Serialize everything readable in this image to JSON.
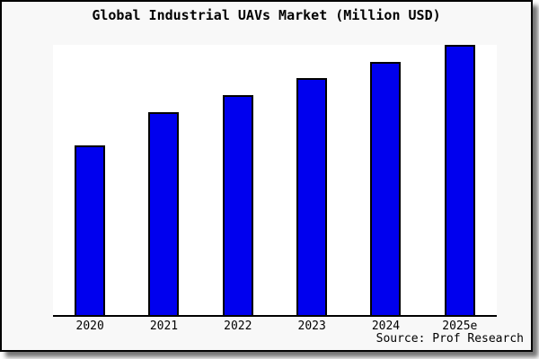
{
  "window": {
    "card_background": "#f8f8f8",
    "plot_background": "#ffffff",
    "frame_border_color": "#000000"
  },
  "chart_data": {
    "type": "bar",
    "title": "Global Industrial UAVs Market (Million USD)",
    "categories": [
      "2020",
      "2021",
      "2022",
      "2023",
      "2024",
      "2025e"
    ],
    "values": [
      62.8,
      75.1,
      81.4,
      87.7,
      93.7,
      100
    ],
    "xlabel": "",
    "ylabel": "",
    "ylim": [
      0,
      100
    ],
    "grid": false,
    "legend_position": "none",
    "bar_color": "#0000ee",
    "bar_border_color": "#000000",
    "source": "Source: Prof Research"
  }
}
